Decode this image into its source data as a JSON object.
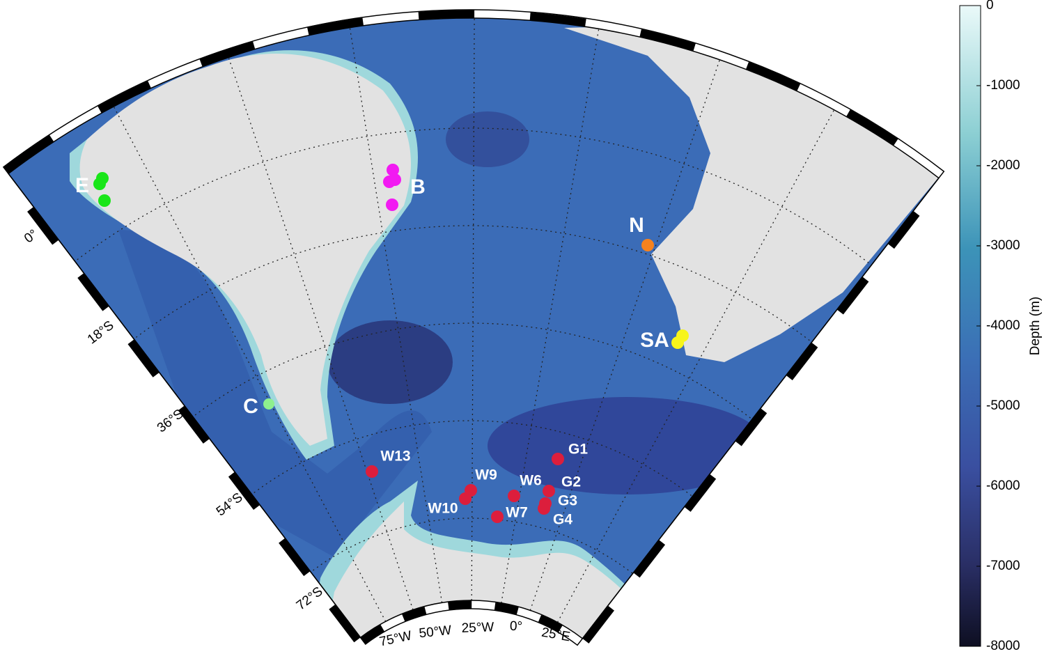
{
  "map": {
    "sites": [
      {
        "label": "E",
        "color": "#19e619"
      },
      {
        "label": "B",
        "color": "#f21af2"
      },
      {
        "label": "N",
        "color": "#f5821e"
      },
      {
        "label": "SA",
        "color": "#f7f51a"
      },
      {
        "label": "C",
        "color": "#8ef08e"
      },
      {
        "label": "W13",
        "color": "#dc1e3c"
      },
      {
        "label": "W9",
        "color": "#dc1e3c"
      },
      {
        "label": "W6",
        "color": "#dc1e3c"
      },
      {
        "label": "G1",
        "color": "#dc1e3c"
      },
      {
        "label": "G2",
        "color": "#dc1e3c"
      },
      {
        "label": "G3",
        "color": "#dc1e3c"
      },
      {
        "label": "W10",
        "color": "#dc1e3c"
      },
      {
        "label": "W7",
        "color": "#dc1e3c"
      },
      {
        "label": "G4",
        "color": "#dc1e3c"
      }
    ],
    "lat_labels": [
      "0°",
      "18°S",
      "36°S",
      "54°S",
      "72°S"
    ],
    "lon_labels": [
      "75°W",
      "50°W",
      "25°W",
      "0°",
      "25°E"
    ]
  },
  "colorbar": {
    "label": "Depth (m)",
    "lim": [
      -8000,
      0
    ],
    "ticks": [
      0,
      -1000,
      -2000,
      -3000,
      -4000,
      -5000,
      -6000,
      -7000,
      -8000
    ]
  }
}
